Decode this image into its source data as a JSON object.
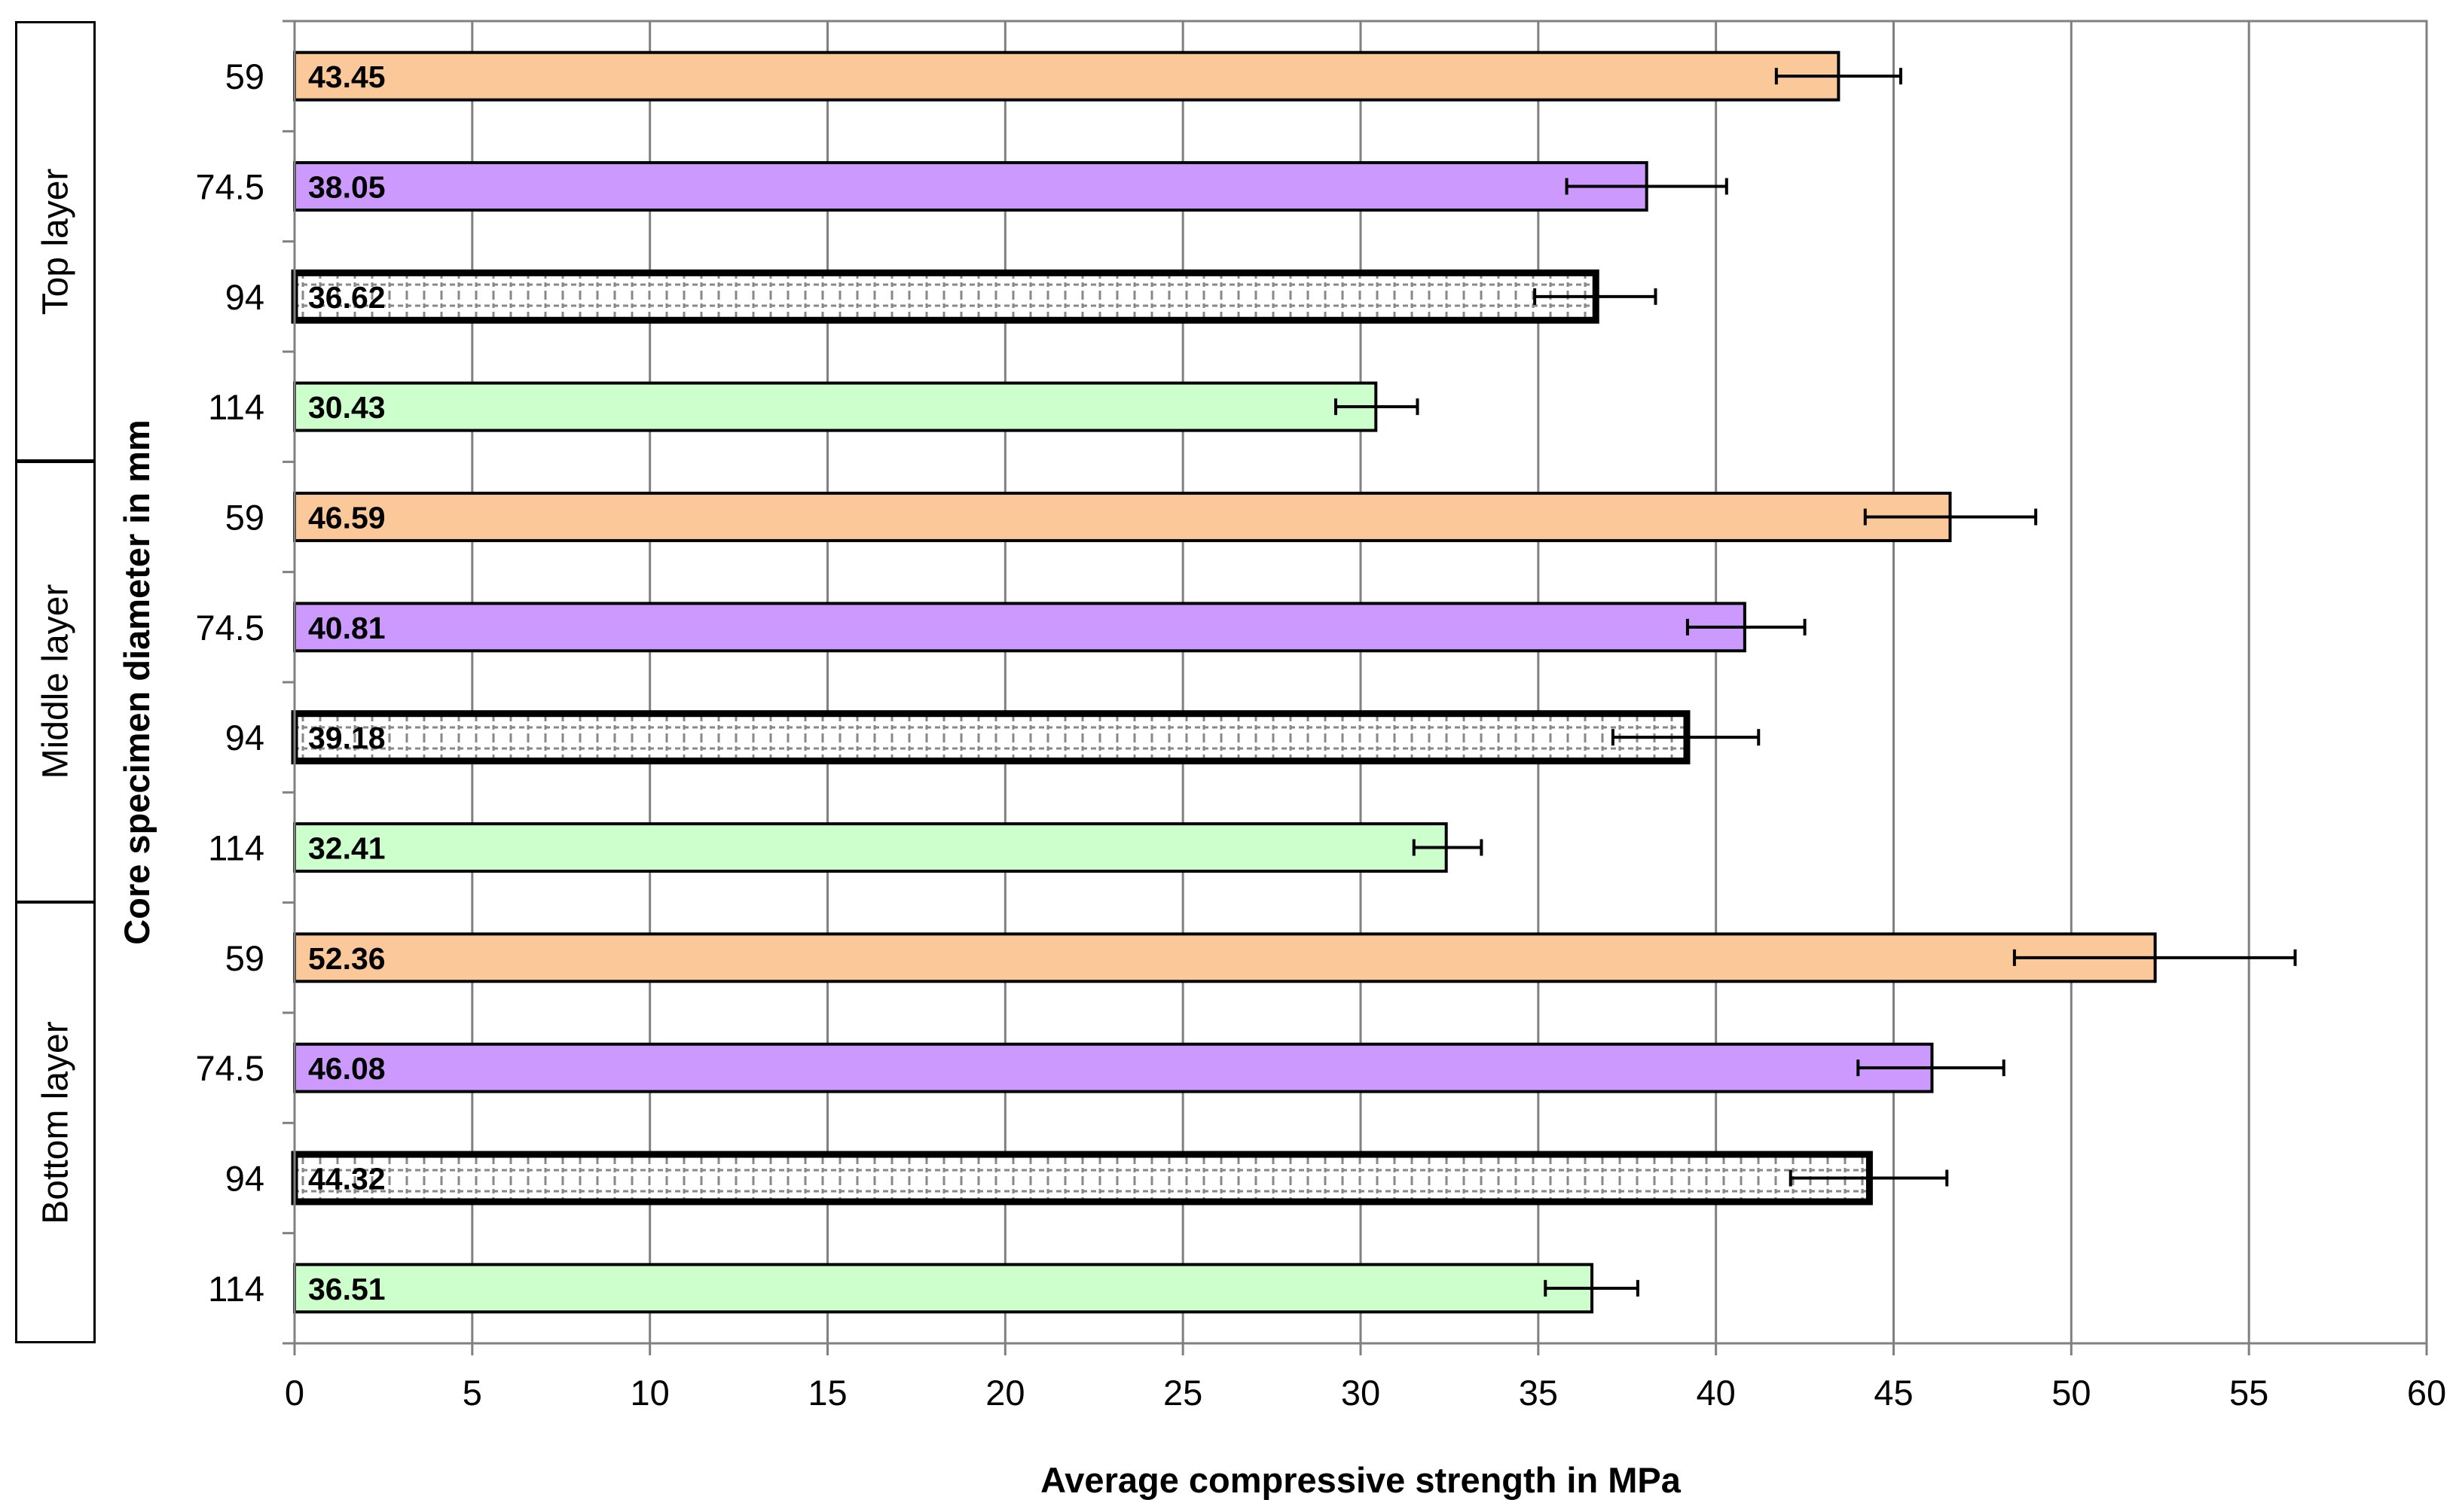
{
  "chart_data": {
    "type": "bar",
    "orientation": "horizontal",
    "xlabel": "Average compressive strength in MPa",
    "ylabel": "Core specimen diameter in mm",
    "xlim": [
      0,
      60
    ],
    "xticks": [
      0,
      5,
      10,
      15,
      20,
      25,
      30,
      35,
      40,
      45,
      50,
      55,
      60
    ],
    "grid": "vertical",
    "groups": [
      {
        "name": "Top layer",
        "bars": [
          {
            "diameter": "59",
            "value": 43.45,
            "label": "43.45",
            "err_low": 41.7,
            "err_high": 45.2,
            "color": "#fbc89a"
          },
          {
            "diameter": "74.5",
            "value": 38.05,
            "label": "38.05",
            "err_low": 35.8,
            "err_high": 40.3,
            "color": "#cc99ff"
          },
          {
            "diameter": "94",
            "value": 36.62,
            "label": "36.62",
            "err_low": 34.9,
            "err_high": 38.3,
            "color": "pattern"
          },
          {
            "diameter": "114",
            "value": 30.43,
            "label": "30.43",
            "err_low": 29.3,
            "err_high": 31.6,
            "color": "#ccffcc"
          }
        ]
      },
      {
        "name": "Middle layer",
        "bars": [
          {
            "diameter": "59",
            "value": 46.59,
            "label": "46.59",
            "err_low": 44.2,
            "err_high": 49.0,
            "color": "#fbc89a"
          },
          {
            "diameter": "74.5",
            "value": 40.81,
            "label": "40.81",
            "err_low": 39.2,
            "err_high": 42.5,
            "color": "#cc99ff"
          },
          {
            "diameter": "94",
            "value": 39.18,
            "label": "39.18",
            "err_low": 37.1,
            "err_high": 41.2,
            "color": "pattern"
          },
          {
            "diameter": "114",
            "value": 32.41,
            "label": "32.41",
            "err_low": 31.5,
            "err_high": 33.4,
            "color": "#ccffcc"
          }
        ]
      },
      {
        "name": "Bottom layer",
        "bars": [
          {
            "diameter": "59",
            "value": 52.36,
            "label": "52.36",
            "err_low": 48.4,
            "err_high": 56.3,
            "color": "#fbc89a"
          },
          {
            "diameter": "74.5",
            "value": 46.08,
            "label": "46.08",
            "err_low": 44.0,
            "err_high": 48.1,
            "color": "#cc99ff"
          },
          {
            "diameter": "94",
            "value": 44.32,
            "label": "44.32",
            "err_low": 42.1,
            "err_high": 46.5,
            "color": "pattern"
          },
          {
            "diameter": "114",
            "value": 36.51,
            "label": "36.51",
            "err_low": 35.2,
            "err_high": 37.8,
            "color": "#ccffcc"
          }
        ]
      }
    ]
  }
}
